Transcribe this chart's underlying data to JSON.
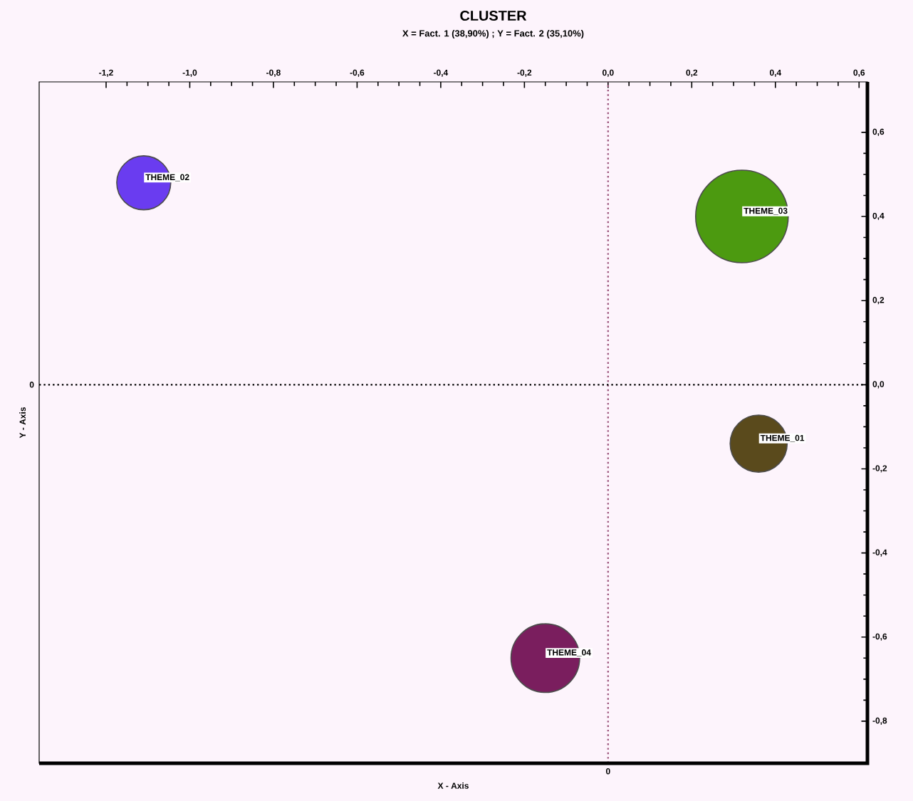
{
  "chart_data": {
    "type": "bubble",
    "title": "CLUSTER",
    "subtitle": "X = Fact. 1 (38,90%) ; Y = Fact. 2 (35,10%)",
    "xlabel": "X - Axis",
    "ylabel": "Y - Axis",
    "x": [
      -1.11,
      0.32,
      0.36,
      -0.15
    ],
    "values": [
      0.48,
      0.4,
      -0.14,
      -0.65
    ],
    "sizes": [
      0.34,
      1,
      0.38,
      0.55
    ],
    "colors": [
      "#6a3cf0",
      "#4c9a10",
      "#5a4a1c",
      "#7a1e5e"
    ],
    "annotations": [
      {
        "text": "THEME_02",
        "x": -1.11,
        "y": 0.48
      },
      {
        "text": "THEME_03",
        "x": 0.32,
        "y": 0.4
      },
      {
        "text": "THEME_01",
        "x": 0.36,
        "y": -0.14
      },
      {
        "text": "THEME_04",
        "x": -0.15,
        "y": -0.65
      }
    ],
    "xlim": [
      -1.36,
      0.62
    ],
    "ylim": [
      -0.9,
      0.72
    ],
    "xticks": [
      {
        "value": -1.2,
        "label": "-1,2"
      },
      {
        "value": -1.0,
        "label": "-1,0"
      },
      {
        "value": -0.8,
        "label": "-0,8"
      },
      {
        "value": -0.6,
        "label": "-0,6"
      },
      {
        "value": -0.4,
        "label": "-0,4"
      },
      {
        "value": -0.2,
        "label": "-0,2"
      },
      {
        "value": 0,
        "label": "0,0"
      },
      {
        "value": 0.2,
        "label": "0,2"
      },
      {
        "value": 0.4,
        "label": "0,4"
      },
      {
        "value": 0.6,
        "label": "0,6"
      }
    ],
    "yticks": [
      {
        "value": 0.6,
        "label": "0,6"
      },
      {
        "value": 0.4,
        "label": "0,4"
      },
      {
        "value": 0.2,
        "label": "0,2"
      },
      {
        "value": 0,
        "label": "0,0"
      },
      {
        "value": -0.2,
        "label": "-0,2"
      },
      {
        "value": -0.4,
        "label": "-0,4"
      },
      {
        "value": -0.6,
        "label": "-0,6"
      },
      {
        "value": -0.8,
        "label": "-0,8"
      }
    ],
    "ref_lines": [
      {
        "axis": "x",
        "value": 0,
        "label": "0",
        "color": "#a05a80",
        "line_style": "dotted"
      },
      {
        "axis": "y",
        "value": 0,
        "label": "0",
        "color": "#000000",
        "line_style": "dotted"
      }
    ]
  }
}
